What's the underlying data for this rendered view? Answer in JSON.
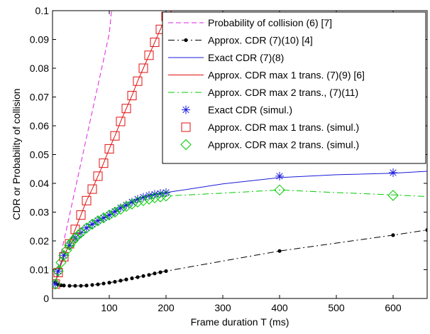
{
  "chart_data": {
    "type": "line",
    "xlabel": "Frame duration T (ms)",
    "ylabel": "CDR or Probability of collision",
    "xlim": [
      0,
      660
    ],
    "ylim": [
      0,
      0.1
    ],
    "x_ticks": [
      100,
      200,
      300,
      400,
      500,
      600
    ],
    "y_ticks": [
      0,
      0.01,
      0.02,
      0.03,
      0.04,
      0.05,
      0.06,
      0.07,
      0.08,
      0.09,
      0.1
    ],
    "x_tick_labels": [
      "100",
      "200",
      "300",
      "400",
      "500",
      "600"
    ],
    "y_tick_labels": [
      "0",
      "0.01",
      "0.02",
      "0.03",
      "0.04",
      "0.05",
      "0.06",
      "0.07",
      "0.08",
      "0.09",
      "0.1"
    ],
    "legend_position": "top-right",
    "grid": false,
    "series": [
      {
        "name": "Probability of collision (6) [7]",
        "style": "dashed",
        "marker": "none",
        "color": "#e020e0",
        "x": [
          5,
          10,
          20,
          30,
          40,
          50,
          60,
          70,
          80,
          90,
          100,
          104
        ],
        "y": [
          0.005,
          0.011,
          0.02,
          0.029,
          0.038,
          0.047,
          0.056,
          0.065,
          0.074,
          0.083,
          0.092,
          0.1
        ]
      },
      {
        "name": "Approx. CDR (7)(10) [4]",
        "style": "dashdot",
        "marker": "dot",
        "color": "#000000",
        "x": [
          5,
          10,
          15,
          20,
          30,
          40,
          50,
          60,
          70,
          80,
          90,
          100,
          110,
          120,
          130,
          140,
          150,
          160,
          170,
          180,
          190,
          200,
          400,
          600,
          660
        ],
        "y": [
          0.0055,
          0.0048,
          0.0046,
          0.0045,
          0.0044,
          0.0044,
          0.0044,
          0.0045,
          0.0047,
          0.0049,
          0.0052,
          0.0055,
          0.0058,
          0.0062,
          0.0066,
          0.007,
          0.0074,
          0.0078,
          0.0082,
          0.0087,
          0.0091,
          0.0095,
          0.0165,
          0.022,
          0.0238
        ]
      },
      {
        "name": "Exact CDR (7)(8)",
        "style": "solid",
        "marker": "none",
        "color": "#1a1adb",
        "x": [
          5,
          10,
          15,
          20,
          25,
          30,
          35,
          40,
          45,
          50,
          60,
          70,
          80,
          90,
          100,
          110,
          120,
          130,
          140,
          150,
          160,
          170,
          180,
          190,
          200,
          300,
          400,
          500,
          600,
          660
        ],
        "y": [
          0.005,
          0.0095,
          0.0125,
          0.015,
          0.0168,
          0.0185,
          0.0198,
          0.021,
          0.022,
          0.0228,
          0.0245,
          0.0258,
          0.027,
          0.028,
          0.029,
          0.0302,
          0.0315,
          0.0325,
          0.0335,
          0.0345,
          0.0352,
          0.0358,
          0.0362,
          0.0365,
          0.0368,
          0.0398,
          0.042,
          0.043,
          0.0435,
          0.0442
        ]
      },
      {
        "name": "Approx. CDR max 1 trans. (7)(9) [6]",
        "style": "solid",
        "marker": "none",
        "color": "#e01010",
        "x": [
          5,
          10,
          20,
          30,
          40,
          50,
          60,
          70,
          80,
          90,
          100,
          110,
          120,
          130,
          140,
          150,
          160,
          170,
          180,
          190,
          200,
          210
        ],
        "y": [
          0.005,
          0.009,
          0.0145,
          0.019,
          0.024,
          0.029,
          0.034,
          0.038,
          0.0425,
          0.047,
          0.052,
          0.0565,
          0.0615,
          0.066,
          0.0705,
          0.0755,
          0.08,
          0.0845,
          0.089,
          0.0935,
          0.098,
          0.1
        ]
      },
      {
        "name": "Approx. CDR max 2 trans., (7)(11)",
        "style": "dashdot",
        "marker": "none",
        "color": "#00cc00",
        "x": [
          5,
          10,
          15,
          20,
          25,
          30,
          35,
          40,
          45,
          50,
          60,
          70,
          80,
          90,
          100,
          110,
          120,
          130,
          140,
          150,
          160,
          170,
          180,
          190,
          200,
          300,
          400,
          500,
          600,
          660
        ],
        "y": [
          0.005,
          0.0095,
          0.0125,
          0.015,
          0.0168,
          0.0185,
          0.0198,
          0.021,
          0.022,
          0.0228,
          0.0245,
          0.0258,
          0.027,
          0.028,
          0.029,
          0.03,
          0.031,
          0.032,
          0.0328,
          0.0335,
          0.034,
          0.0345,
          0.035,
          0.0353,
          0.0356,
          0.0366,
          0.0377,
          0.0368,
          0.036,
          0.0354
        ]
      },
      {
        "name": "Exact CDR (simul.)",
        "style": "none",
        "marker": "asterisk",
        "color": "#1a1adb",
        "x": [
          5,
          10,
          20,
          30,
          40,
          50,
          60,
          70,
          80,
          90,
          100,
          110,
          120,
          130,
          140,
          150,
          160,
          170,
          180,
          190,
          200,
          400,
          600
        ],
        "y": [
          0.005,
          0.0095,
          0.015,
          0.0185,
          0.021,
          0.0228,
          0.0245,
          0.0258,
          0.027,
          0.028,
          0.029,
          0.0302,
          0.0315,
          0.0325,
          0.0335,
          0.0345,
          0.0352,
          0.0358,
          0.0362,
          0.0365,
          0.0368,
          0.0425,
          0.0437
        ]
      },
      {
        "name": "Approx. CDR max 1 trans. (simul.)",
        "style": "none",
        "marker": "square",
        "color": "#e01010",
        "x": [
          5,
          10,
          20,
          30,
          40,
          50,
          60,
          70,
          80,
          90,
          100,
          110,
          120,
          130,
          140,
          150,
          160,
          170,
          180,
          190,
          200
        ],
        "y": [
          0.005,
          0.009,
          0.0145,
          0.019,
          0.024,
          0.029,
          0.034,
          0.038,
          0.0425,
          0.047,
          0.052,
          0.0565,
          0.0615,
          0.066,
          0.0705,
          0.0755,
          0.08,
          0.0845,
          0.089,
          0.0935,
          0.098
        ]
      },
      {
        "name": "Approx. CDR max 2 trans. (simul.)",
        "style": "none",
        "marker": "diamond",
        "color": "#00cc00",
        "x": [
          5,
          10,
          15,
          20,
          25,
          30,
          35,
          40,
          45,
          50,
          60,
          70,
          80,
          90,
          100,
          110,
          120,
          130,
          140,
          150,
          160,
          170,
          180,
          190,
          200,
          400,
          600
        ],
        "y": [
          0.005,
          0.0095,
          0.0125,
          0.015,
          0.0168,
          0.0185,
          0.0198,
          0.021,
          0.022,
          0.0228,
          0.0245,
          0.0258,
          0.027,
          0.028,
          0.029,
          0.03,
          0.031,
          0.032,
          0.0328,
          0.0335,
          0.034,
          0.0345,
          0.035,
          0.0353,
          0.0356,
          0.0377,
          0.0358
        ]
      }
    ]
  }
}
